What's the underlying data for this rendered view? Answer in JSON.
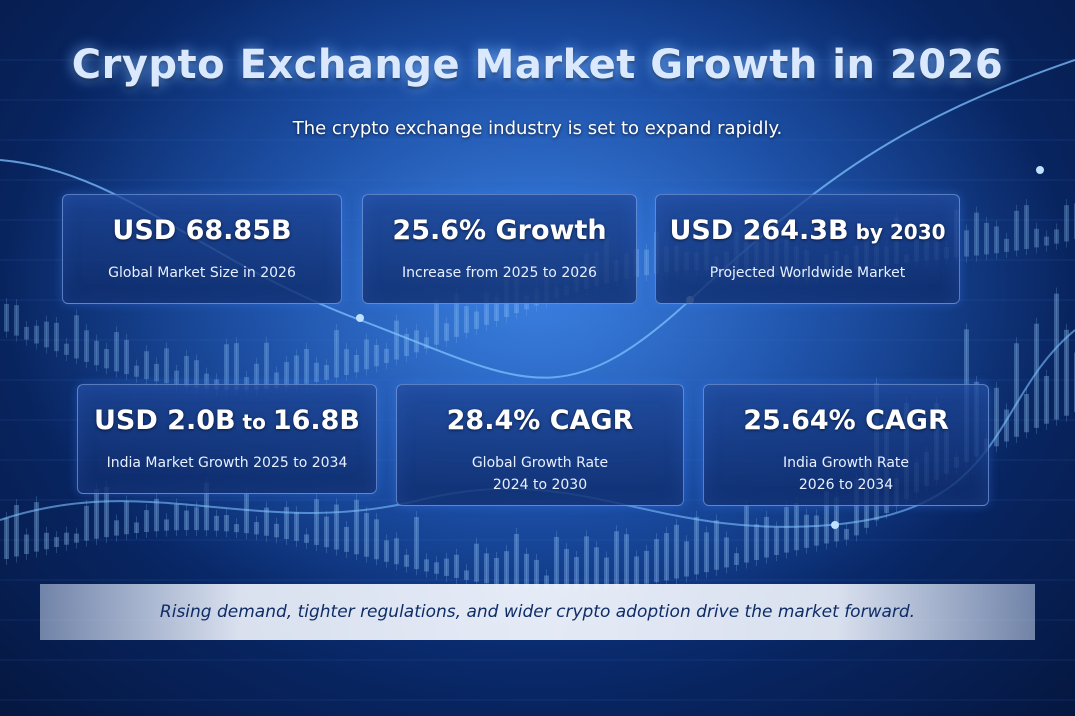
{
  "header": {
    "title": "Crypto Exchange Market Growth in 2026",
    "subtitle": "The crypto exchange industry is set to expand rapidly."
  },
  "stats": [
    {
      "value": "USD 68.85B",
      "value_suffix": "",
      "label": "Global Market Size in 2026",
      "label2": ""
    },
    {
      "value": "25.6% Growth",
      "value_suffix": "",
      "label": "Increase from 2025 to 2026",
      "label2": ""
    },
    {
      "value": "USD 264.3B",
      "value_suffix": " by 2030",
      "label": "Projected Worldwide Market",
      "label2": ""
    },
    {
      "value": "USD 2.0B",
      "value_mid": " to ",
      "value_end": "16.8B",
      "label": "India Market Growth 2025 to 2034",
      "label2": ""
    },
    {
      "value": "28.4% CAGR",
      "value_suffix": "",
      "label": "Global Growth Rate",
      "label2": "2024 to 2030"
    },
    {
      "value": "25.64% CAGR",
      "value_suffix": "",
      "label": "India Growth Rate",
      "label2": "2026 to 2034"
    }
  ],
  "footer": {
    "banner_text": "Rising demand, tighter regulations, and wider crypto adoption drive the market forward."
  },
  "colors": {
    "background": "#0d3a8f",
    "accent_glow": "#6fb6ff",
    "card_border": "#96beff",
    "banner_text": "#0e2c66"
  }
}
